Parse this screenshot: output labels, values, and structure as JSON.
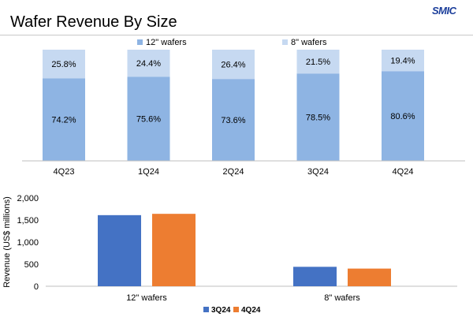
{
  "page": {
    "title": "Wafer Revenue By Size",
    "logo": "SMIC"
  },
  "colors": {
    "wafer12_light": "#8eb4e3",
    "wafer8_light": "#c6d9f1",
    "q3": "#4472c4",
    "q4": "#ed7d31"
  },
  "chart_data": [
    {
      "type": "bar",
      "stacked": true,
      "percent": true,
      "categories": [
        "4Q23",
        "1Q24",
        "2Q24",
        "3Q24",
        "4Q24"
      ],
      "series": [
        {
          "name": "12\" wafers",
          "values": [
            74.2,
            75.6,
            73.6,
            78.5,
            80.6
          ],
          "labels": [
            "74.2%",
            "75.6%",
            "73.6%",
            "78.5%",
            "80.6%"
          ]
        },
        {
          "name": "8\" wafers",
          "values": [
            25.8,
            24.4,
            26.4,
            21.5,
            19.4
          ],
          "labels": [
            "25.8%",
            "24.4%",
            "26.4%",
            "21.5%",
            "19.4%"
          ]
        }
      ],
      "legend": "top"
    },
    {
      "type": "bar",
      "categories": [
        "12\" wafers",
        "8\" wafers"
      ],
      "series": [
        {
          "name": "3Q24",
          "values": [
            1610,
            440
          ]
        },
        {
          "name": "4Q24",
          "values": [
            1640,
            400
          ]
        }
      ],
      "ylabel": "Revenue (US$  millions)",
      "ylim": [
        0,
        2000
      ],
      "yticks": [
        0,
        500,
        1000,
        1500,
        2000
      ],
      "ytick_labels": [
        "0",
        "500",
        "1,000",
        "1,500",
        "2,000"
      ],
      "legend": "bottom"
    }
  ]
}
